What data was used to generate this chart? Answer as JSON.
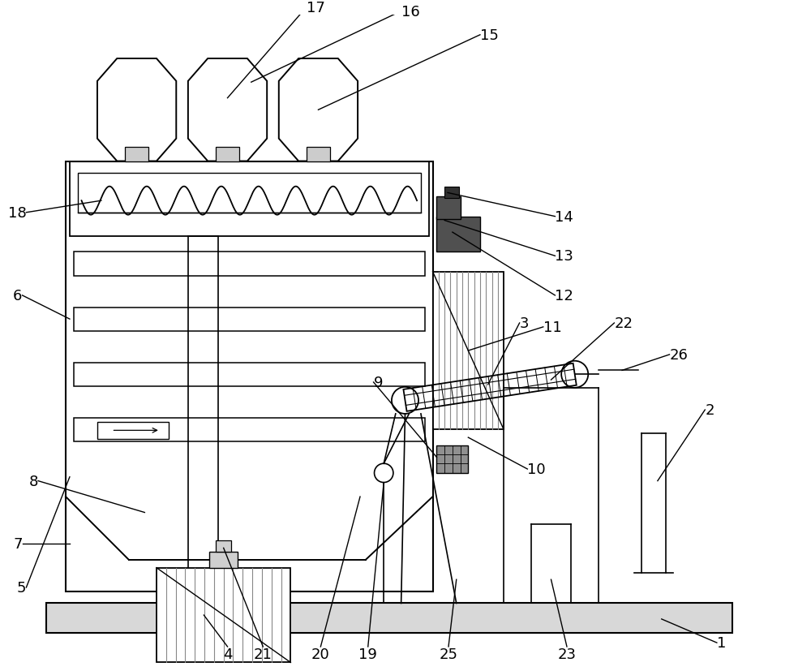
{
  "bg_color": "#ffffff",
  "lc": "#000000",
  "gray_fill": "#b0b0b0",
  "dark_gray": "#505050",
  "label_fontsize": 13,
  "figsize": [
    10.0,
    8.28
  ],
  "dpi": 100
}
